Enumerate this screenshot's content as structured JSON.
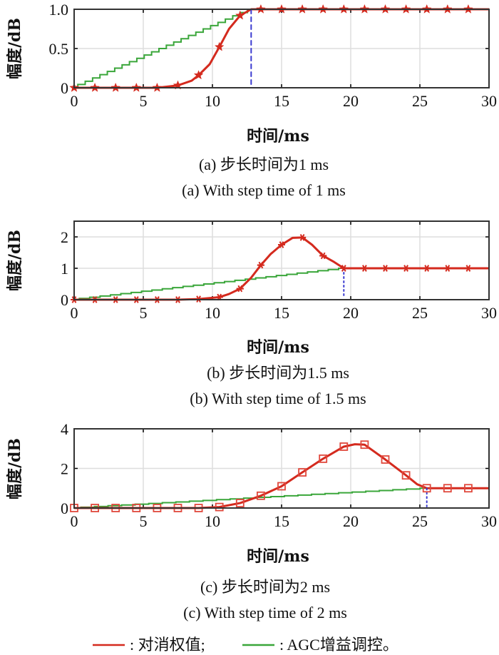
{
  "colors": {
    "weight": "#d42a1e",
    "agc": "#3aa63a",
    "marker_line": "#d42a1e",
    "vline": "#3b3bd0",
    "grid": "#dddddd",
    "axis": "#333333"
  },
  "legend": {
    "items": [
      {
        "label": ": 对消权值;",
        "color": "#d42a1e"
      },
      {
        "label": ": AGC增益调控。",
        "color": "#3aa63a"
      }
    ]
  },
  "chart_data": [
    {
      "type": "line",
      "id": "a",
      "ylabel": "幅度/dB",
      "xlabel": "时间/ms",
      "caption_cn": "(a) 步长时间为1 ms",
      "caption_en": "(a) With step time of 1 ms",
      "xlim": [
        0,
        30
      ],
      "ylim": [
        0,
        1.0
      ],
      "xticks": [
        0,
        5,
        10,
        15,
        20,
        25,
        30
      ],
      "xtick_labels": [
        "0",
        "5",
        "10",
        "15",
        "20",
        "25",
        "30"
      ],
      "yticks": [
        0,
        0.5,
        1.0
      ],
      "ytick_labels": [
        "0",
        "0.5",
        "1.0"
      ],
      "grid": true,
      "marker": "star",
      "vline": {
        "x": 12.8,
        "style": "dashed"
      },
      "series": [
        {
          "name": "对消权值",
          "x": [
            0,
            1.5,
            3,
            4.5,
            6,
            7.5,
            8.5,
            9,
            9.8,
            10.5,
            11.2,
            12,
            12.8,
            13.5,
            15,
            16.5,
            18,
            19.5,
            21,
            22.5,
            24,
            25.5,
            27,
            28.5,
            30
          ],
          "y": [
            0,
            0,
            0,
            0,
            0,
            0.03,
            0.09,
            0.16,
            0.3,
            0.52,
            0.75,
            0.92,
            1.0,
            1.0,
            1.0,
            1.0,
            1.0,
            1.0,
            1.0,
            1.0,
            1.0,
            1.0,
            1.0,
            1.0,
            1.0
          ],
          "marker_x": [
            0,
            1.5,
            3,
            4.5,
            6,
            7.5,
            9,
            10.5,
            12,
            13.5,
            15,
            16.5,
            18,
            19.5,
            21,
            22.5,
            24,
            25.5,
            27,
            28.5
          ]
        },
        {
          "name": "AGC增益调控",
          "step": true,
          "x_end": 12.8,
          "steps": 24,
          "y_start": 0,
          "y_end": 1.0
        }
      ]
    },
    {
      "type": "line",
      "id": "b",
      "ylabel": "幅度/dB",
      "xlabel": "时间/ms",
      "caption_cn": "(b) 步长时间为1.5 ms",
      "caption_en": "(b) With step time of 1.5 ms",
      "xlim": [
        0,
        30
      ],
      "ylim": [
        0,
        2.5
      ],
      "xticks": [
        0,
        5,
        10,
        15,
        20,
        25,
        30
      ],
      "xtick_labels": [
        "0",
        "5",
        "10",
        "15",
        "20",
        "25",
        "30"
      ],
      "yticks": [
        0,
        1,
        2
      ],
      "ytick_labels": [
        "0",
        "1",
        "2"
      ],
      "grid": true,
      "marker": "asterisk",
      "vline": {
        "x": 19.5,
        "style": "dotted"
      },
      "series": [
        {
          "name": "对消权值",
          "x": [
            0,
            1.5,
            3,
            4.5,
            6,
            7.5,
            9,
            10.5,
            11.2,
            12,
            12.8,
            13.5,
            14.2,
            15,
            15.8,
            16.5,
            17.2,
            18,
            18.8,
            19.5,
            21,
            22.5,
            24,
            25.5,
            27,
            28.5,
            30
          ],
          "y": [
            0,
            0,
            0,
            0,
            0,
            0,
            0.02,
            0.08,
            0.18,
            0.35,
            0.7,
            1.1,
            1.45,
            1.75,
            1.97,
            1.98,
            1.75,
            1.4,
            1.2,
            1.0,
            1.0,
            1.0,
            1.0,
            1.0,
            1.0,
            1.0,
            1.0
          ],
          "marker_x": [
            0,
            1.5,
            3,
            4.5,
            6,
            7.5,
            9,
            10.5,
            12,
            13.5,
            15,
            16.5,
            18,
            19.5,
            21,
            22.5,
            24,
            25.5,
            27,
            28.5
          ]
        },
        {
          "name": "AGC增益调控",
          "step": true,
          "x_end": 19.5,
          "steps": 26,
          "y_start": 0,
          "y_end": 1.0
        }
      ]
    },
    {
      "type": "line",
      "id": "c",
      "ylabel": "幅度/dB",
      "xlabel": "时间/ms",
      "caption_cn": "(c) 步长时间为2 ms",
      "caption_en": "(c) With step time of 2 ms",
      "xlim": [
        0,
        30
      ],
      "ylim": [
        0,
        4
      ],
      "xticks": [
        0,
        5,
        10,
        15,
        20,
        25,
        30
      ],
      "xtick_labels": [
        "0",
        "5",
        "10",
        "15",
        "20",
        "25",
        "30"
      ],
      "yticks": [
        0,
        2,
        4
      ],
      "ytick_labels": [
        "0",
        "2",
        "4"
      ],
      "grid": true,
      "marker": "square",
      "vline": {
        "x": 25.5,
        "style": "dotted"
      },
      "series": [
        {
          "name": "对消权值",
          "x": [
            0,
            1.5,
            3,
            4.5,
            6,
            7.5,
            9,
            10.5,
            12,
            13.5,
            15,
            16.5,
            18,
            19.5,
            20.3,
            21,
            22.5,
            24,
            24.8,
            25.5,
            27,
            28.5,
            30
          ],
          "y": [
            0,
            0,
            0,
            0,
            0,
            0,
            0,
            0.05,
            0.25,
            0.62,
            1.1,
            1.8,
            2.49,
            3.1,
            3.22,
            3.2,
            2.45,
            1.65,
            1.2,
            1.0,
            1.0,
            1.0,
            1.0
          ],
          "marker_x": [
            0,
            1.5,
            3,
            4.5,
            6,
            7.5,
            9,
            10.5,
            12,
            13.5,
            15,
            16.5,
            18,
            19.5,
            21,
            22.5,
            24,
            25.5,
            27,
            28.5
          ]
        },
        {
          "name": "AGC增益调控",
          "step": true,
          "x_end": 25.5,
          "steps": 26,
          "y_start": 0,
          "y_end": 1.0
        }
      ]
    }
  ]
}
